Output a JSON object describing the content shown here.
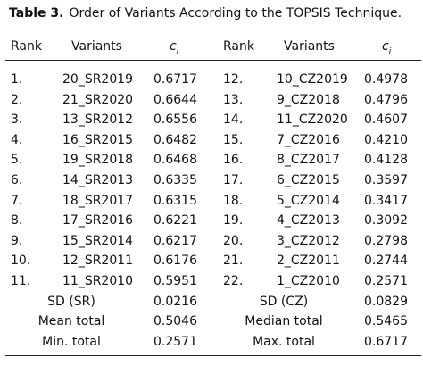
{
  "caption": {
    "label": "Table 3.",
    "title": "Order of Variants According to the TOPSIS Technique."
  },
  "headers": {
    "rank": "Rank",
    "variants": "Variants",
    "ci": "c",
    "ci_sub": "i"
  },
  "rows": [
    {
      "rank_l": "1.",
      "var_l": "20_SR2019",
      "ci_l": "0.6717",
      "rank_r": "12.",
      "var_r": "10_CZ2019",
      "ci_r": "0.4978"
    },
    {
      "rank_l": "2.",
      "var_l": "21_SR2020",
      "ci_l": "0.6644",
      "rank_r": "13.",
      "var_r": "9_CZ2018",
      "ci_r": "0.4796"
    },
    {
      "rank_l": "3.",
      "var_l": "13_SR2012",
      "ci_l": "0.6556",
      "rank_r": "14.",
      "var_r": "11_CZ2020",
      "ci_r": "0.4607"
    },
    {
      "rank_l": "4.",
      "var_l": "16_SR2015",
      "ci_l": "0.6482",
      "rank_r": "15.",
      "var_r": "7_CZ2016",
      "ci_r": "0.4210"
    },
    {
      "rank_l": "5.",
      "var_l": "19_SR2018",
      "ci_l": "0.6468",
      "rank_r": "16.",
      "var_r": "8_CZ2017",
      "ci_r": "0.4128"
    },
    {
      "rank_l": "6.",
      "var_l": "14_SR2013",
      "ci_l": "0.6335",
      "rank_r": "17.",
      "var_r": "6_CZ2015",
      "ci_r": "0.3597"
    },
    {
      "rank_l": "7.",
      "var_l": "18_SR2017",
      "ci_l": "0.6315",
      "rank_r": "18.",
      "var_r": "5_CZ2014",
      "ci_r": "0.3417"
    },
    {
      "rank_l": "8.",
      "var_l": "17_SR2016",
      "ci_l": "0.6221",
      "rank_r": "19.",
      "var_r": "4_CZ2013",
      "ci_r": "0.3092"
    },
    {
      "rank_l": "9.",
      "var_l": "15_SR2014",
      "ci_l": "0.6217",
      "rank_r": "20.",
      "var_r": "3_CZ2012",
      "ci_r": "0.2798"
    },
    {
      "rank_l": "10.",
      "var_l": "12_SR2011",
      "ci_l": "0.6176",
      "rank_r": "21.",
      "var_r": "2_CZ2011",
      "ci_r": "0.2744"
    },
    {
      "rank_l": "11.",
      "var_l": "11_SR2010",
      "ci_l": "0.5951",
      "rank_r": "22.",
      "var_r": "1_CZ2010",
      "ci_r": "0.2571"
    }
  ],
  "summary": [
    {
      "label_l": "SD (SR)",
      "val_l": "0.0216",
      "label_r": "SD (CZ)",
      "val_r": "0.0829"
    },
    {
      "label_l": "Mean total",
      "val_l": "0.5046",
      "label_r": "Median total",
      "val_r": "0.5465"
    },
    {
      "label_l": "Min. total",
      "val_l": "0.2571",
      "label_r": "Max. total",
      "val_r": "0.6717"
    }
  ]
}
